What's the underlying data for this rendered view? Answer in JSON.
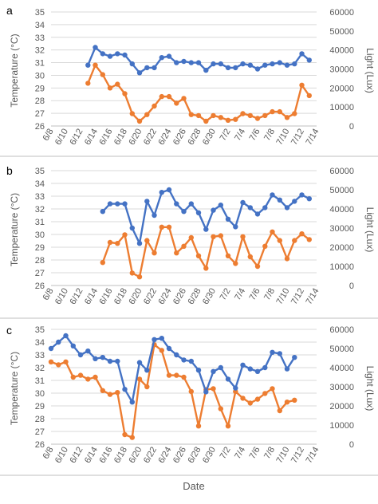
{
  "figure": {
    "xlabel": "Date",
    "colors": {
      "temperature": "#4472C4",
      "light": "#ED7D31",
      "grid": "#D9D9D9",
      "text": "#595959",
      "separator": "#BFBFBF"
    }
  },
  "chart_data": [
    {
      "type": "line",
      "panel_label": "a",
      "x": [
        "6/8",
        "6/9",
        "6/10",
        "6/11",
        "6/12",
        "6/13",
        "6/14",
        "6/15",
        "6/16",
        "6/17",
        "6/18",
        "6/19",
        "6/20",
        "6/21",
        "6/22",
        "6/23",
        "6/24",
        "6/25",
        "6/26",
        "6/27",
        "6/28",
        "6/29",
        "6/30",
        "7/1",
        "7/2",
        "7/3",
        "7/4",
        "7/5",
        "7/6",
        "7/7",
        "7/8",
        "7/9",
        "7/10",
        "7/11",
        "7/12",
        "7/13",
        "7/14"
      ],
      "x_tick_labels": [
        "6/8",
        "6/10",
        "6/12",
        "6/14",
        "6/16",
        "6/18",
        "6/20",
        "6/22",
        "6/24",
        "6/26",
        "6/28",
        "6/30",
        "7/2",
        "7/4",
        "7/6",
        "7/8",
        "7/10",
        "7/12",
        "7/14"
      ],
      "ylabel": "Temperature (°C)",
      "ylabel_right": "Light (Lux)",
      "ylim": [
        26,
        35
      ],
      "y_ticks": [
        26,
        27,
        28,
        29,
        30,
        31,
        32,
        33,
        34,
        35
      ],
      "ylim_right": [
        0,
        60000
      ],
      "y_ticks_right": [
        0,
        10000,
        20000,
        30000,
        40000,
        50000,
        60000
      ],
      "grid": true,
      "series": [
        {
          "axis": "left",
          "color": "#4472C4",
          "values": [
            null,
            null,
            null,
            null,
            null,
            30.8,
            32.2,
            31.7,
            31.5,
            31.7,
            31.6,
            30.9,
            30.2,
            30.6,
            30.6,
            31.4,
            31.5,
            31.0,
            31.1,
            31.0,
            31.0,
            30.4,
            30.9,
            30.9,
            30.6,
            30.6,
            30.9,
            30.8,
            30.5,
            30.8,
            30.9,
            31.0,
            30.8,
            30.9,
            31.7,
            31.2,
            null
          ]
        },
        {
          "axis": "right",
          "color": "#ED7D31",
          "values": [
            null,
            null,
            null,
            null,
            null,
            22500,
            32000,
            27000,
            20000,
            22000,
            17000,
            6500,
            2500,
            6000,
            10500,
            15500,
            15500,
            12000,
            14500,
            6000,
            5500,
            2500,
            5500,
            4500,
            3000,
            3500,
            6500,
            5500,
            4000,
            5500,
            7500,
            7500,
            4500,
            6500,
            21500,
            16000,
            null
          ]
        }
      ]
    },
    {
      "type": "line",
      "panel_label": "b",
      "x": [
        "6/8",
        "6/9",
        "6/10",
        "6/11",
        "6/12",
        "6/13",
        "6/14",
        "6/15",
        "6/16",
        "6/17",
        "6/18",
        "6/19",
        "6/20",
        "6/21",
        "6/22",
        "6/23",
        "6/24",
        "6/25",
        "6/26",
        "6/27",
        "6/28",
        "6/29",
        "6/30",
        "7/1",
        "7/2",
        "7/3",
        "7/4",
        "7/5",
        "7/6",
        "7/7",
        "7/8",
        "7/9",
        "7/10",
        "7/11",
        "7/12",
        "7/13",
        "7/14"
      ],
      "x_tick_labels": [
        "6/8",
        "6/10",
        "6/12",
        "6/14",
        "6/16",
        "6/18",
        "6/20",
        "6/22",
        "6/24",
        "6/26",
        "6/28",
        "6/30",
        "7/2",
        "7/4",
        "7/6",
        "7/8",
        "7/10",
        "7/12",
        "7/14"
      ],
      "ylabel": "Temperature (°C)",
      "ylabel_right": "Light (Lux)",
      "ylim": [
        26,
        35
      ],
      "y_ticks": [
        26,
        27,
        28,
        29,
        30,
        31,
        32,
        33,
        34,
        35
      ],
      "ylim_right": [
        0,
        60000
      ],
      "y_ticks_right": [
        0,
        10000,
        20000,
        30000,
        40000,
        50000,
        60000
      ],
      "grid": true,
      "series": [
        {
          "axis": "left",
          "color": "#4472C4",
          "values": [
            null,
            null,
            null,
            null,
            null,
            null,
            null,
            31.8,
            32.4,
            32.4,
            32.4,
            30.5,
            29.3,
            32.6,
            31.5,
            33.3,
            33.5,
            32.4,
            31.8,
            32.4,
            31.7,
            30.4,
            31.9,
            32.3,
            31.2,
            30.6,
            32.5,
            32.1,
            31.6,
            32.1,
            33.1,
            32.7,
            32.1,
            32.6,
            33.1,
            32.8,
            null
          ]
        },
        {
          "axis": "right",
          "color": "#ED7D31",
          "values": [
            null,
            null,
            null,
            null,
            null,
            null,
            null,
            12000,
            22500,
            22000,
            26500,
            6500,
            4500,
            23500,
            17000,
            30500,
            30500,
            17000,
            20500,
            25000,
            15500,
            9000,
            25500,
            26000,
            15500,
            11500,
            25500,
            15000,
            10000,
            20500,
            28000,
            23500,
            14000,
            23500,
            27000,
            24000,
            null
          ]
        }
      ]
    },
    {
      "type": "line",
      "panel_label": "c",
      "x": [
        "6/8",
        "6/9",
        "6/10",
        "6/11",
        "6/12",
        "6/13",
        "6/14",
        "6/15",
        "6/16",
        "6/17",
        "6/18",
        "6/19",
        "6/20",
        "6/21",
        "6/22",
        "6/23",
        "6/24",
        "6/25",
        "6/26",
        "6/27",
        "6/28",
        "6/29",
        "6/30",
        "7/1",
        "7/2",
        "7/3",
        "7/4",
        "7/5",
        "7/6",
        "7/7",
        "7/8",
        "7/9",
        "7/10",
        "7/11",
        "7/12",
        "7/13",
        "7/14"
      ],
      "x_tick_labels": [
        "6/8",
        "6/10",
        "6/12",
        "6/14",
        "6/16",
        "6/18",
        "6/20",
        "6/22",
        "6/24",
        "6/26",
        "6/28",
        "6/30",
        "7/2",
        "7/4",
        "7/6",
        "7/8",
        "7/10",
        "7/12",
        "7/14"
      ],
      "ylabel": "Temperature (°C)",
      "ylabel_right": "Light (Lux)",
      "ylim": [
        26,
        35
      ],
      "y_ticks": [
        26,
        27,
        28,
        29,
        30,
        31,
        32,
        33,
        34,
        35
      ],
      "ylim_right": [
        0,
        60000
      ],
      "y_ticks_right": [
        0,
        10000,
        20000,
        30000,
        40000,
        50000,
        60000
      ],
      "grid": true,
      "series": [
        {
          "axis": "left",
          "color": "#4472C4",
          "values": [
            33.5,
            34.0,
            34.5,
            33.7,
            33.0,
            33.3,
            32.7,
            32.8,
            32.5,
            32.5,
            30.3,
            29.3,
            32.4,
            31.8,
            34.2,
            34.3,
            33.5,
            33.0,
            32.6,
            32.5,
            31.8,
            30.1,
            31.7,
            32.0,
            31.1,
            30.4,
            32.2,
            31.9,
            31.7,
            32.0,
            33.2,
            33.1,
            31.9,
            32.8,
            null,
            null,
            null
          ]
        },
        {
          "axis": "right",
          "color": "#ED7D31",
          "values": [
            43000,
            41500,
            43000,
            35000,
            36000,
            34000,
            35000,
            28000,
            26000,
            27000,
            5000,
            3500,
            34000,
            30000,
            52000,
            49000,
            36000,
            36000,
            35000,
            27500,
            9500,
            28500,
            29000,
            18500,
            9500,
            27500,
            24000,
            21500,
            23500,
            26500,
            29000,
            17500,
            22000,
            23000,
            null,
            null,
            null
          ]
        }
      ]
    }
  ]
}
